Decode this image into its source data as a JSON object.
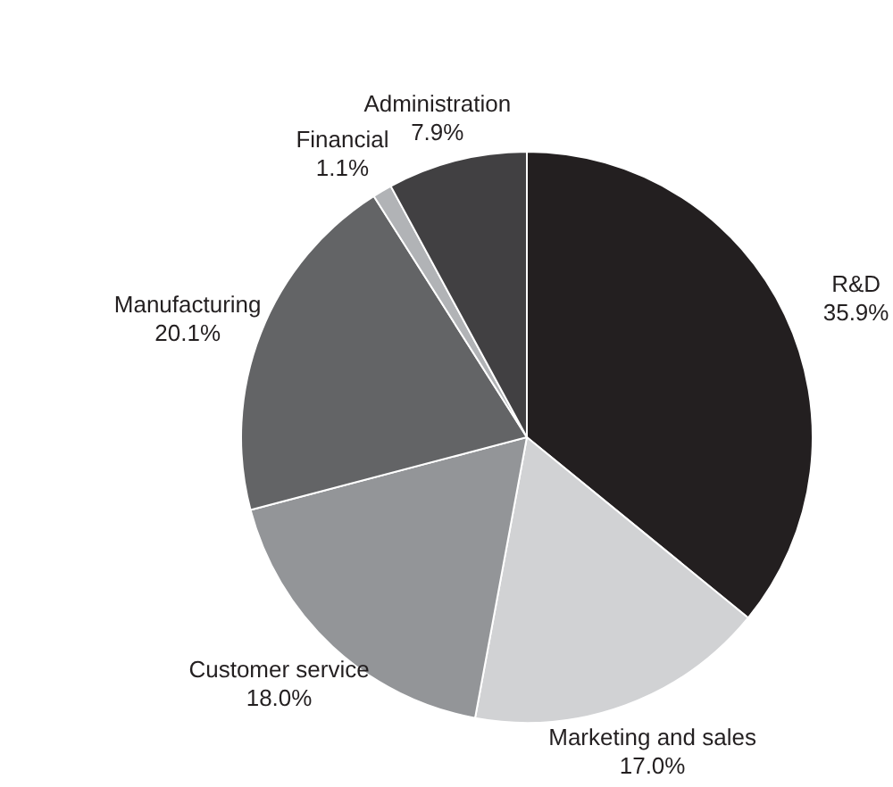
{
  "chart_data": {
    "type": "pie",
    "categories": [
      "R&D",
      "Marketing and sales",
      "Customer service",
      "Manufacturing",
      "Financial",
      "Administration"
    ],
    "values": [
      35.9,
      17.0,
      18.0,
      20.1,
      1.1,
      7.9
    ],
    "value_labels": [
      "35.9%",
      "17.0%",
      "18.0%",
      "20.1%",
      "1.1%",
      "7.9%"
    ],
    "colors": [
      "#231f20",
      "#d1d2d4",
      "#939598",
      "#636466",
      "#b1b3b6",
      "#414042"
    ],
    "legend": false
  }
}
